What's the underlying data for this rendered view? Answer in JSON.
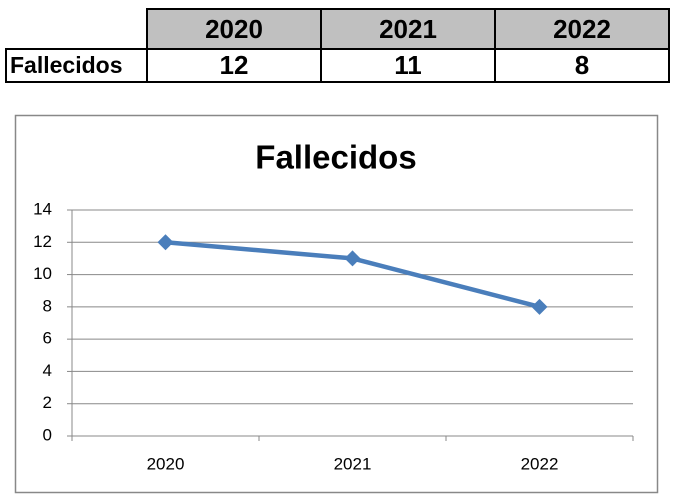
{
  "table": {
    "columns": [
      "2020",
      "2021",
      "2022"
    ],
    "rows": [
      {
        "label": "Fallecidos",
        "values": [
          12,
          11,
          8
        ]
      }
    ]
  },
  "chart_data": {
    "type": "line",
    "title": "Fallecidos",
    "categories": [
      "2020",
      "2021",
      "2022"
    ],
    "values": [
      12,
      11,
      8
    ],
    "color": "#4a7ebb",
    "ylim": [
      0,
      14
    ],
    "yticks": [
      0,
      2,
      4,
      6,
      8,
      10,
      12,
      14
    ],
    "grid": true
  }
}
